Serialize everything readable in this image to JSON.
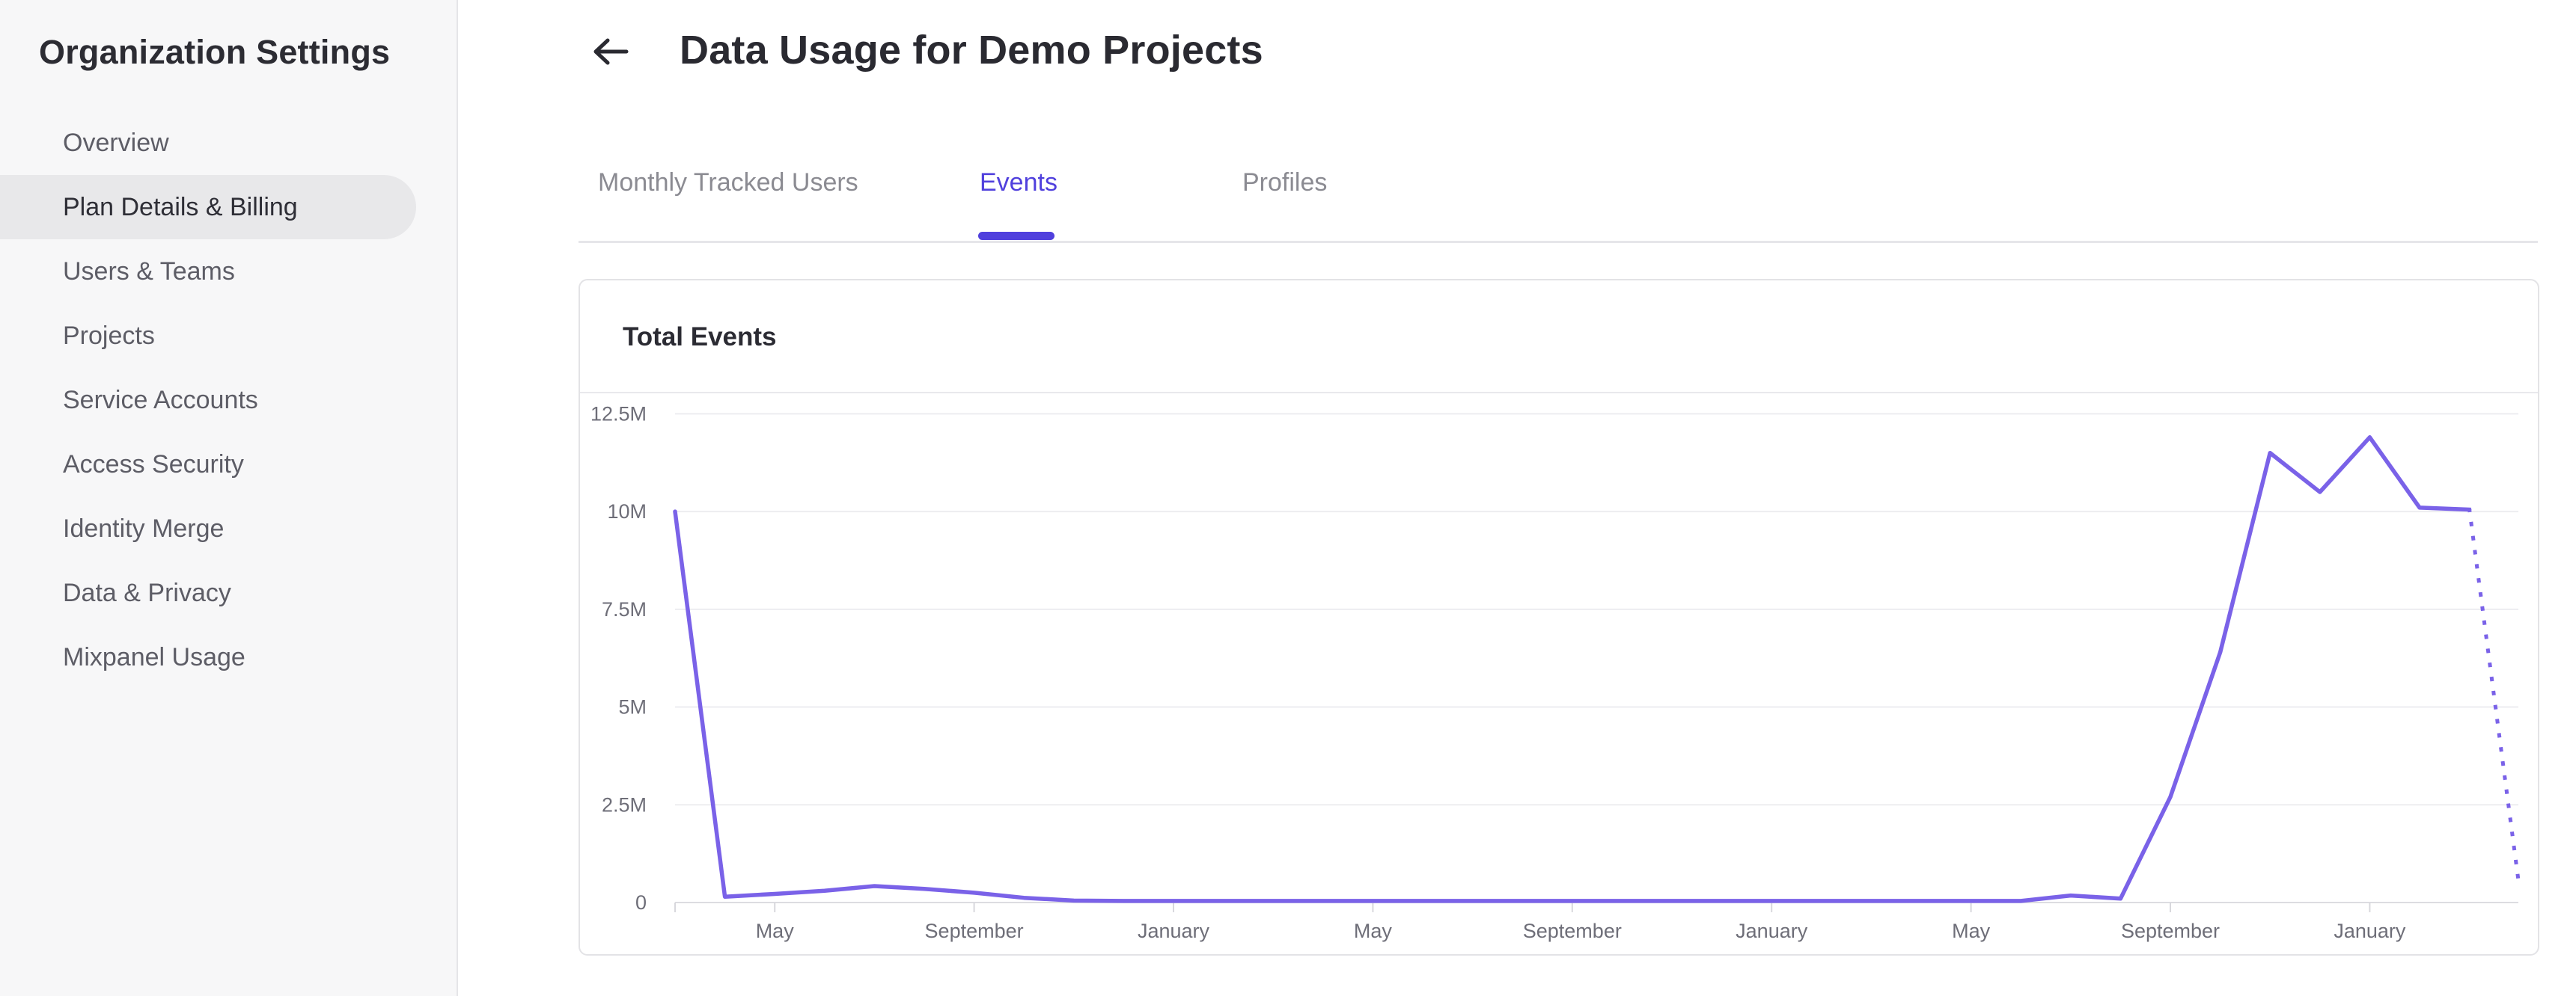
{
  "sidebar": {
    "title": "Organization Settings",
    "items": [
      {
        "label": "Overview",
        "slug": "overview",
        "active": false
      },
      {
        "label": "Plan Details & Billing",
        "slug": "plan-details-billing",
        "active": true
      },
      {
        "label": "Users & Teams",
        "slug": "users-teams",
        "active": false
      },
      {
        "label": "Projects",
        "slug": "projects",
        "active": false
      },
      {
        "label": "Service Accounts",
        "slug": "service-accounts",
        "active": false
      },
      {
        "label": "Access Security",
        "slug": "access-security",
        "active": false
      },
      {
        "label": "Identity Merge",
        "slug": "identity-merge",
        "active": false
      },
      {
        "label": "Data & Privacy",
        "slug": "data-privacy",
        "active": false
      },
      {
        "label": "Mixpanel Usage",
        "slug": "mixpanel-usage",
        "active": false
      }
    ]
  },
  "header": {
    "title": "Data Usage for Demo Projects",
    "back_icon": "left-arrow-icon"
  },
  "tabs": [
    {
      "label": "Monthly Tracked Users",
      "active": false
    },
    {
      "label": "Events",
      "active": true
    },
    {
      "label": "Profiles",
      "active": false
    }
  ],
  "card": {
    "title": "Total Events"
  },
  "colors": {
    "accent_purple": "#5040dd",
    "line_purple": "#7a62e8",
    "sidebar_bg": "#f7f7f8",
    "active_pill_bg": "#e8e8ea",
    "card_border": "#e3e3e6",
    "axis_text": "#6e6e78"
  },
  "chart_data": {
    "type": "line",
    "title": "Total Events",
    "x_granularity": "monthly",
    "legend": "none",
    "grid": "horizontal",
    "y_axis": {
      "max_millions": 12.5,
      "ticks": [
        {
          "label": "12.5M",
          "value_millions": 12.5
        },
        {
          "label": "10M",
          "value_millions": 10
        },
        {
          "label": "7.5M",
          "value_millions": 7.5
        },
        {
          "label": "5M",
          "value_millions": 5
        },
        {
          "label": "2.5M",
          "value_millions": 2.5
        },
        {
          "label": "0",
          "value_millions": 0
        }
      ]
    },
    "x_axis": {
      "ticks": [
        {
          "label": "May",
          "month_index": 2
        },
        {
          "label": "September",
          "month_index": 6
        },
        {
          "label": "January",
          "month_index": 10
        },
        {
          "label": "May",
          "month_index": 14
        },
        {
          "label": "September",
          "month_index": 18
        },
        {
          "label": "January",
          "month_index": 22
        },
        {
          "label": "May",
          "month_index": 26
        },
        {
          "label": "September",
          "month_index": 30
        },
        {
          "label": "January",
          "month_index": 34
        }
      ]
    },
    "series": [
      {
        "name": "Total Events",
        "values_millions": [
          10,
          0.15,
          0.22,
          0.3,
          0.42,
          0.35,
          0.25,
          0.12,
          0.05,
          0.04,
          0.04,
          0.04,
          0.04,
          0.04,
          0.04,
          0.04,
          0.04,
          0.04,
          0.04,
          0.04,
          0.04,
          0.04,
          0.04,
          0.04,
          0.04,
          0.04,
          0.04,
          0.04,
          0.18,
          0.1,
          2.7,
          6.4,
          11.5,
          10.5,
          11.9,
          10.1,
          10.05
        ],
        "projected_value_millions": 0.4,
        "projected_style": "dotted"
      }
    ]
  }
}
